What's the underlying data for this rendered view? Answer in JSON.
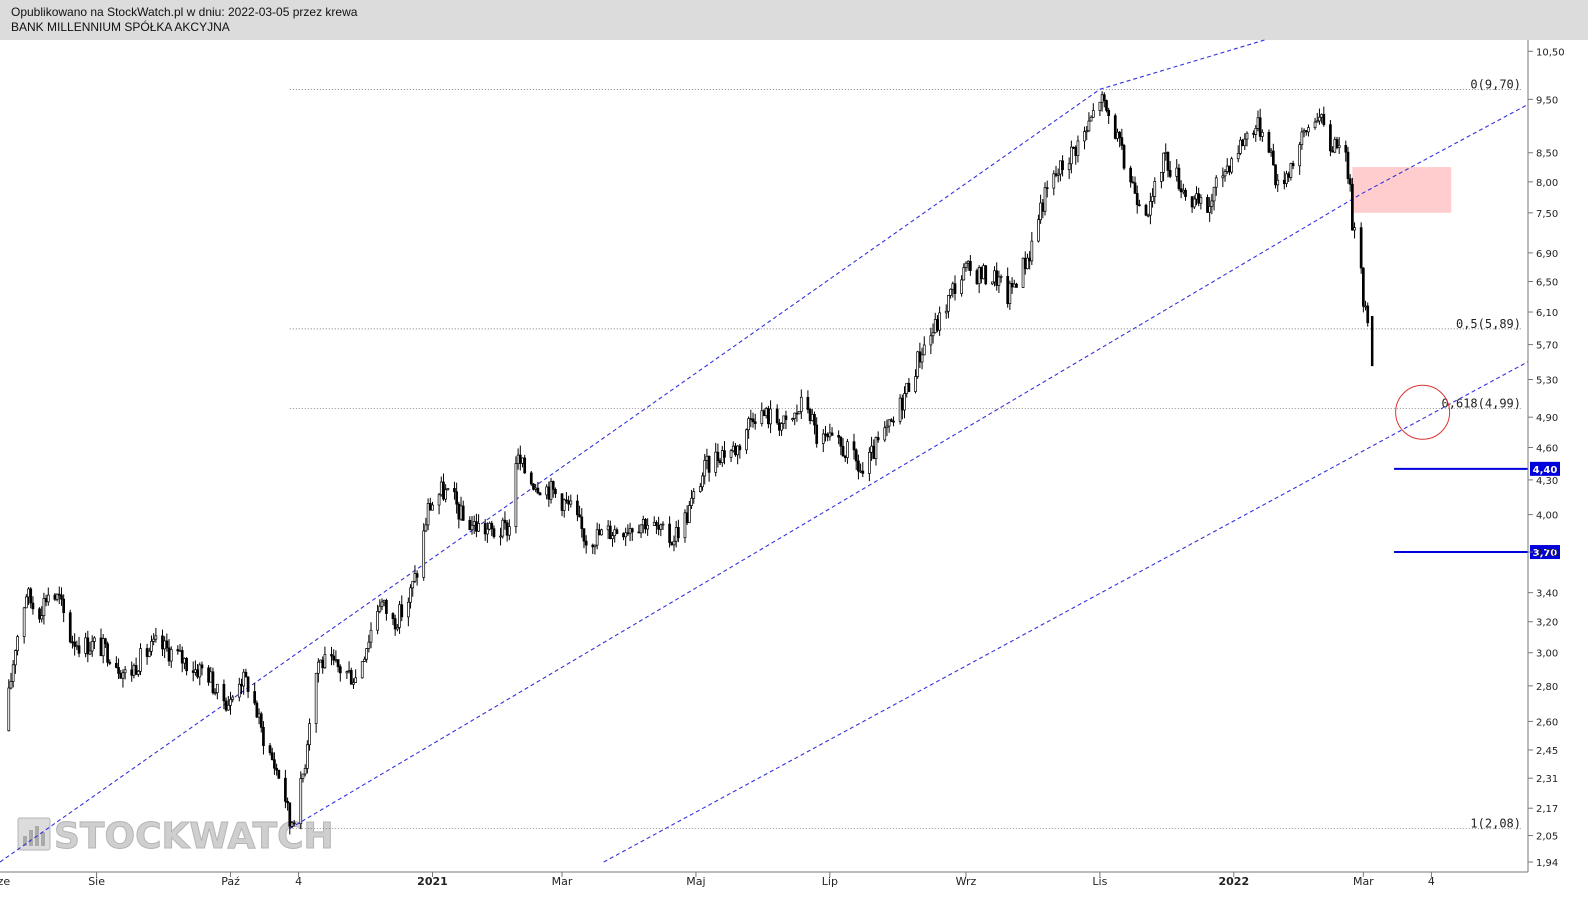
{
  "header": {
    "line1": "Opublikowano na StockWatch.pl w dniu: 2022-03-05 przez krewa",
    "line2": "BANK MILLENNIUM SPÓŁKA AKCYJNA"
  },
  "watermark": "STOCKWATCH",
  "colors": {
    "candles": "#000000",
    "trend_lines": "#3333dd",
    "levels": "#0000dd",
    "zone": "#ffc8c8",
    "circle": "#dd3333",
    "header_bg": "#dcdcdc"
  },
  "chart_data": {
    "type": "candlestick",
    "y_scale": "log",
    "ylim": [
      1.9,
      10.75
    ],
    "y_ticks": [
      "10,50",
      "9,50",
      "8,50",
      "8,00",
      "7,50",
      "6,90",
      "6,50",
      "6,10",
      "5,70",
      "5,30",
      "4,90",
      "4,60",
      "4,30",
      "4,00",
      "3,70",
      "3,40",
      "3,20",
      "3,00",
      "2,80",
      "2,60",
      "2,45",
      "2,31",
      "2,17",
      "2,05",
      "1,94"
    ],
    "x_ticks": [
      "Sie",
      "Paź",
      "4",
      "2021",
      "Mar",
      "Maj",
      "Lip",
      "Wrz",
      "Lis",
      "2022",
      "Mar",
      "4"
    ],
    "x_tick_dates": [
      "2020-08-01",
      "2020-10-01",
      "2020-11-01",
      "2021-01-01",
      "2021-03-01",
      "2021-05-01",
      "2021-07-01",
      "2021-09-01",
      "2021-11-01",
      "2022-01-01",
      "2022-03-01",
      "2022-04-01"
    ],
    "x_start_label": "Cze",
    "x_range": [
      "2020-06-18",
      "2022-05-15"
    ],
    "series": [
      {
        "points": [
          [
            "2020-06-20",
            2.55
          ],
          [
            "2020-06-25",
            3.05
          ],
          [
            "2020-06-30",
            3.4
          ],
          [
            "2020-07-05",
            3.25
          ],
          [
            "2020-07-10",
            3.4
          ],
          [
            "2020-07-15",
            3.35
          ],
          [
            "2020-07-20",
            3.1
          ],
          [
            "2020-07-25",
            3.05
          ],
          [
            "2020-08-01",
            3.05
          ],
          [
            "2020-08-07",
            3.0
          ],
          [
            "2020-08-15",
            2.85
          ],
          [
            "2020-08-20",
            2.95
          ],
          [
            "2020-08-28",
            3.05
          ],
          [
            "2020-09-05",
            3.0
          ],
          [
            "2020-09-10",
            2.95
          ],
          [
            "2020-09-15",
            2.9
          ],
          [
            "2020-09-20",
            2.9
          ],
          [
            "2020-09-25",
            2.75
          ],
          [
            "2020-10-01",
            2.7
          ],
          [
            "2020-10-05",
            2.85
          ],
          [
            "2020-10-10",
            2.8
          ],
          [
            "2020-10-15",
            2.55
          ],
          [
            "2020-10-20",
            2.4
          ],
          [
            "2020-10-25",
            2.28
          ],
          [
            "2020-10-28",
            2.1
          ],
          [
            "2020-11-01",
            2.2
          ],
          [
            "2020-11-04",
            2.4
          ],
          [
            "2020-11-07",
            2.75
          ],
          [
            "2020-11-10",
            2.95
          ],
          [
            "2020-11-20",
            2.9
          ],
          [
            "2020-11-27",
            2.85
          ],
          [
            "2020-12-03",
            3.1
          ],
          [
            "2020-12-08",
            3.35
          ],
          [
            "2020-12-14",
            3.2
          ],
          [
            "2020-12-20",
            3.3
          ],
          [
            "2020-12-25",
            3.55
          ],
          [
            "2020-12-30",
            4.05
          ],
          [
            "2021-01-05",
            4.2
          ],
          [
            "2021-01-10",
            4.15
          ],
          [
            "2021-01-15",
            3.95
          ],
          [
            "2021-01-22",
            3.9
          ],
          [
            "2021-01-30",
            3.85
          ],
          [
            "2021-02-05",
            3.9
          ],
          [
            "2021-02-08",
            4.5
          ],
          [
            "2021-02-15",
            4.3
          ],
          [
            "2021-02-25",
            4.2
          ],
          [
            "2021-03-05",
            4.05
          ],
          [
            "2021-03-12",
            3.8
          ],
          [
            "2021-03-20",
            3.85
          ],
          [
            "2021-03-30",
            3.9
          ],
          [
            "2021-04-08",
            3.95
          ],
          [
            "2021-04-15",
            3.85
          ],
          [
            "2021-04-20",
            3.8
          ],
          [
            "2021-04-27",
            4.0
          ],
          [
            "2021-05-05",
            4.4
          ],
          [
            "2021-05-12",
            4.55
          ],
          [
            "2021-05-20",
            4.6
          ],
          [
            "2021-05-27",
            4.95
          ],
          [
            "2021-06-05",
            4.9
          ],
          [
            "2021-06-12",
            4.8
          ],
          [
            "2021-06-20",
            5.1
          ],
          [
            "2021-06-25",
            4.7
          ],
          [
            "2021-07-01",
            4.65
          ],
          [
            "2021-07-10",
            4.55
          ],
          [
            "2021-07-16",
            4.35
          ],
          [
            "2021-07-22",
            4.6
          ],
          [
            "2021-07-30",
            4.85
          ],
          [
            "2021-08-05",
            5.2
          ],
          [
            "2021-08-12",
            5.65
          ],
          [
            "2021-08-20",
            6.0
          ],
          [
            "2021-08-26",
            6.4
          ],
          [
            "2021-09-01",
            6.65
          ],
          [
            "2021-09-08",
            6.6
          ],
          [
            "2021-09-15",
            6.55
          ],
          [
            "2021-09-20",
            6.3
          ],
          [
            "2021-09-24",
            6.55
          ],
          [
            "2021-09-30",
            6.9
          ],
          [
            "2021-10-05",
            7.6
          ],
          [
            "2021-10-10",
            8.0
          ],
          [
            "2021-10-18",
            8.45
          ],
          [
            "2021-10-26",
            8.9
          ],
          [
            "2021-11-01",
            9.55
          ],
          [
            "2021-11-08",
            8.9
          ],
          [
            "2021-11-12",
            8.3
          ],
          [
            "2021-11-18",
            7.8
          ],
          [
            "2021-11-24",
            7.55
          ],
          [
            "2021-11-30",
            8.45
          ],
          [
            "2021-12-06",
            8.1
          ],
          [
            "2021-12-12",
            7.7
          ],
          [
            "2021-12-20",
            7.55
          ],
          [
            "2021-12-26",
            8.1
          ],
          [
            "2022-01-03",
            8.6
          ],
          [
            "2022-01-10",
            9.0
          ],
          [
            "2022-01-16",
            8.9
          ],
          [
            "2022-01-21",
            7.9
          ],
          [
            "2022-01-27",
            8.3
          ],
          [
            "2022-02-03",
            8.9
          ],
          [
            "2022-02-08",
            9.25
          ],
          [
            "2022-02-14",
            8.6
          ],
          [
            "2022-02-18",
            8.8
          ],
          [
            "2022-02-22",
            8.2
          ],
          [
            "2022-02-24",
            7.4
          ],
          [
            "2022-02-28",
            6.8
          ],
          [
            "2022-03-01",
            6.3
          ],
          [
            "2022-03-03",
            5.9
          ],
          [
            "2022-03-04",
            5.45
          ]
        ]
      }
    ],
    "trend_lines": [
      [
        [
          "2020-06-18",
          1.94
        ],
        [
          "2021-11-01",
          9.7
        ],
        [
          "2022-01-15",
          10.75
        ]
      ],
      [
        [
          "2020-10-28",
          2.08
        ],
        [
          "2022-02-28",
          7.8
        ],
        [
          "2022-05-15",
          9.4
        ]
      ],
      [
        [
          "2021-03-20",
          1.94
        ],
        [
          "2022-05-15",
          5.5
        ]
      ]
    ],
    "fib_levels": [
      {
        "label": "0(9,70)",
        "value": 9.7
      },
      {
        "label": "0,5(5,89)",
        "value": 5.89
      },
      {
        "label": "0,618(4,99)",
        "value": 4.99
      },
      {
        "label": "1(2,08)",
        "value": 2.08
      }
    ],
    "fib_start": "2020-10-28",
    "horizontal_levels": [
      {
        "label": "4,40",
        "value": 4.4,
        "from": "2022-03-15"
      },
      {
        "label": "3,70",
        "value": 3.7,
        "from": "2022-03-15"
      }
    ],
    "resistance_zone": {
      "from": "2022-02-24",
      "to": "2022-04-10",
      "low": 7.5,
      "high": 8.25
    },
    "target_circle": {
      "date": "2022-03-28",
      "value": 4.95
    }
  }
}
